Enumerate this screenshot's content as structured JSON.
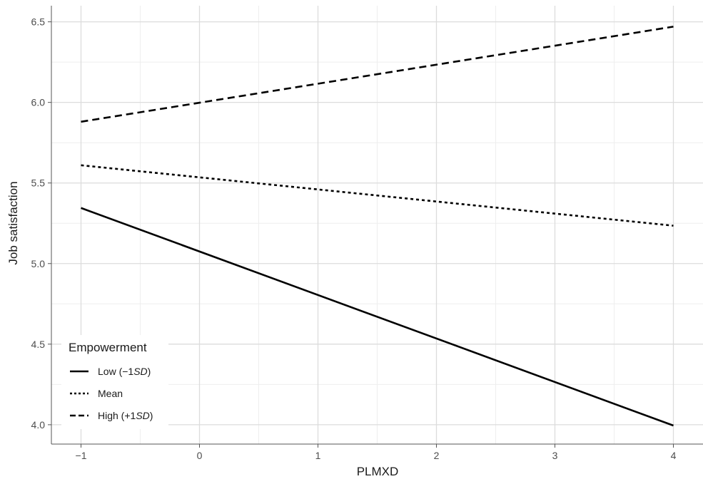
{
  "chart_data": {
    "type": "line",
    "xlabel": "PLMXD",
    "ylabel": "Job satisfaction",
    "xlim": [
      -1.25,
      4.25
    ],
    "ylim": [
      3.88,
      6.6
    ],
    "x_ticks": [
      -1,
      0,
      1,
      2,
      3,
      4
    ],
    "x_tick_labels": [
      "−1",
      "0",
      "1",
      "2",
      "3",
      "4"
    ],
    "y_ticks": [
      4.0,
      4.5,
      5.0,
      5.5,
      6.0,
      6.5
    ],
    "y_tick_labels": [
      "4.0",
      "4.5",
      "5.0",
      "5.5",
      "6.0",
      "6.5"
    ],
    "x": [
      -1,
      4
    ],
    "series": [
      {
        "name": "Low (−1SD)",
        "name_prefix": "Low (−1",
        "name_sd": "SD",
        "name_suffix": ")",
        "values": [
          5.345,
          3.995
        ],
        "dash": "solid",
        "color": "#000000"
      },
      {
        "name": "Mean",
        "name_prefix": "Mean",
        "name_sd": "",
        "name_suffix": "",
        "values": [
          5.61,
          5.235
        ],
        "dash": "dotted",
        "color": "#000000"
      },
      {
        "name": "High (+1SD)",
        "name_prefix": "High (+1",
        "name_sd": "SD",
        "name_suffix": ")",
        "values": [
          5.88,
          6.47
        ],
        "dash": "dashed",
        "color": "#000000"
      }
    ],
    "legend": {
      "title": "Empowerment",
      "position": "bottom-left"
    },
    "grid": true
  }
}
